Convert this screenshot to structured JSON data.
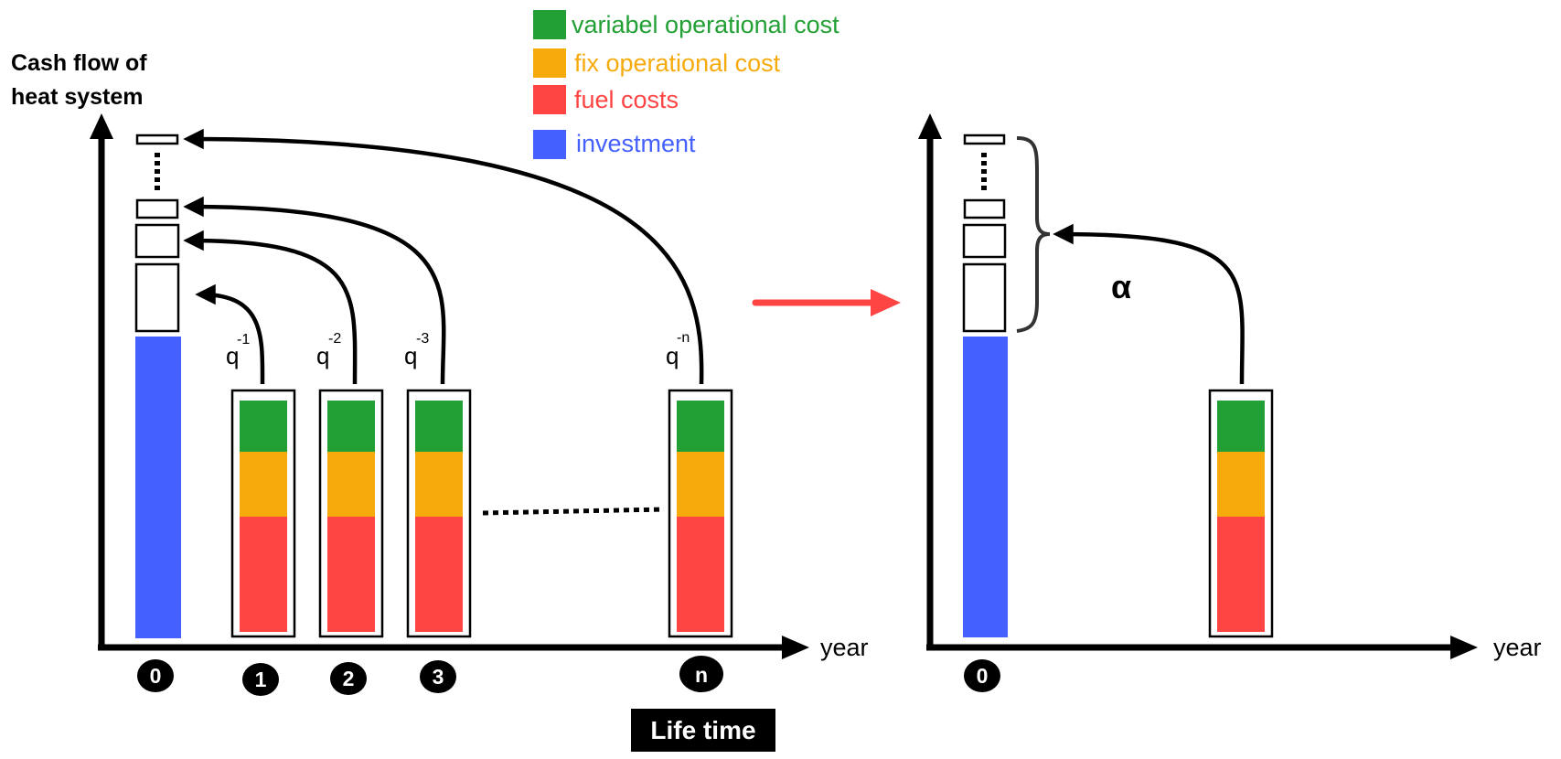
{
  "y_axis_label": {
    "line1": "Cash flow of",
    "line2": "heat system"
  },
  "x_axis_label": "year",
  "x_axis_label_right": "year",
  "legend": [
    {
      "label": "variabel operational cost",
      "color": "#22a035"
    },
    {
      "label": "fix operational cost",
      "color": "#f7aa0c"
    },
    {
      "label": "fuel costs",
      "color": "#ff4444"
    },
    {
      "label": "investment",
      "color": "#4461ff"
    }
  ],
  "year_markers": {
    "y0": "0",
    "y1": "1",
    "y2": "2",
    "y3": "3",
    "yn": "n",
    "right_y0": "0"
  },
  "discount_factors": {
    "q1": {
      "base": "q",
      "exp": "-1"
    },
    "q2": {
      "base": "q",
      "exp": "-2"
    },
    "q3": {
      "base": "q",
      "exp": "-3"
    },
    "qn": {
      "base": "q",
      "exp": "-n"
    }
  },
  "annuity_symbol": "α",
  "lifetime_label": "Life time",
  "colors": {
    "variable": "#22a035",
    "fixed": "#f7aa0c",
    "fuel": "#ff4444",
    "investment": "#4461ff",
    "transform_arrow": "#ff4444"
  }
}
